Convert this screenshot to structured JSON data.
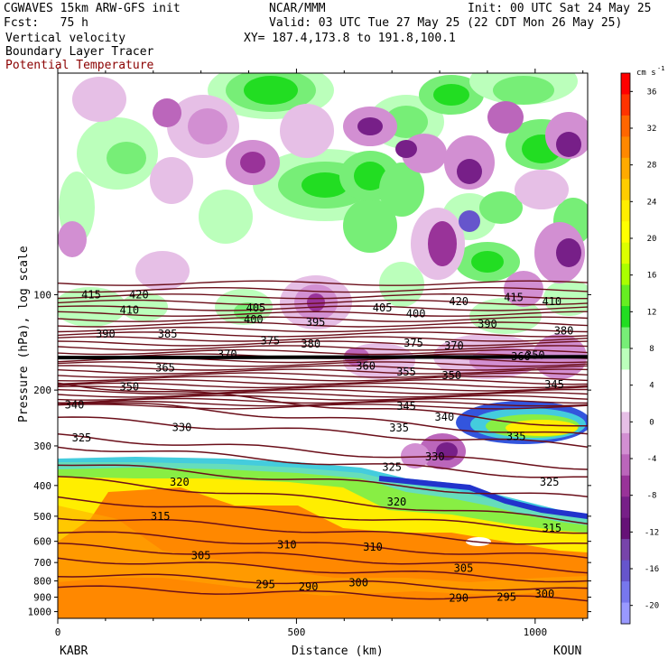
{
  "header": {
    "model_line": "CGWAVES 15km ARW-GFS init",
    "forecast_line": "Fcst:   75 h",
    "field_line": "Vertical velocity",
    "tracer_line": "Boundary Layer Tracer",
    "contour_line": "Potential Temperature",
    "org_line": "NCAR/MMM",
    "init_line": "Init: 00 UTC Sat 24 May 25",
    "valid_line": "Valid: 03 UTC Tue 27 May 25 (22 CDT Mon 26 May 25)",
    "xy_line": "XY= 187.4,173.8 to 191.8,100.1"
  },
  "colors": {
    "contour": "#6b0f1a",
    "contour_label_text": "#000000",
    "colorbar": [
      "#ff0000",
      "#ff3300",
      "#ff6600",
      "#ff8800",
      "#ffaa00",
      "#ffcc00",
      "#ffee00",
      "#ffff00",
      "#ddff00",
      "#aaff00",
      "#66ee22",
      "#22dd22",
      "#77ee77",
      "#bbffbb",
      "#ffffff",
      "#ffffff",
      "#e6bfe6",
      "#d28fd2",
      "#bb66bb",
      "#993399",
      "#771f88",
      "#661177",
      "#7744aa",
      "#6655cc",
      "#7777ee",
      "#9999ff"
    ]
  },
  "chart_data": {
    "type": "heatmap",
    "title": "Vertical velocity",
    "xlabel": "Distance (km)",
    "ylabel": "Pressure (hPa), log scale",
    "xlim": [
      0,
      1110
    ],
    "ylim": [
      1050,
      20
    ],
    "y_scale": "log",
    "x_ticks": [
      0,
      500,
      1000
    ],
    "y_ticks": [
      100,
      200,
      300,
      400,
      500,
      600,
      700,
      800,
      900,
      1000
    ],
    "x_endpoints": {
      "left": "KABR",
      "right": "KOUN"
    },
    "colorbar": {
      "unit": "cm s",
      "unit_exponent": "-1",
      "ticks": [
        36,
        32,
        28,
        24,
        20,
        16,
        12,
        8,
        4,
        0,
        -4,
        -8,
        -12,
        -16,
        -20
      ]
    },
    "theta_labels": [
      {
        "x": 70,
        "p": 100,
        "v": "415"
      },
      {
        "x": 170,
        "p": 100,
        "v": "420"
      },
      {
        "x": 150,
        "p": 112,
        "v": "410"
      },
      {
        "x": 415,
        "p": 110,
        "v": "405"
      },
      {
        "x": 840,
        "p": 105,
        "v": "420"
      },
      {
        "x": 680,
        "p": 110,
        "v": "405"
      },
      {
        "x": 955,
        "p": 102,
        "v": "415"
      },
      {
        "x": 1035,
        "p": 105,
        "v": "410"
      },
      {
        "x": 410,
        "p": 120,
        "v": "400"
      },
      {
        "x": 540,
        "p": 122,
        "v": "395"
      },
      {
        "x": 750,
        "p": 115,
        "v": "400"
      },
      {
        "x": 900,
        "p": 124,
        "v": "390"
      },
      {
        "x": 100,
        "p": 133,
        "v": "390"
      },
      {
        "x": 230,
        "p": 133,
        "v": "385"
      },
      {
        "x": 1060,
        "p": 130,
        "v": "380"
      },
      {
        "x": 445,
        "p": 140,
        "v": "375"
      },
      {
        "x": 530,
        "p": 143,
        "v": "380"
      },
      {
        "x": 745,
        "p": 142,
        "v": "375"
      },
      {
        "x": 830,
        "p": 145,
        "v": "370"
      },
      {
        "x": 355,
        "p": 154,
        "v": "370"
      },
      {
        "x": 970,
        "p": 157,
        "v": "360"
      },
      {
        "x": 1000,
        "p": 155,
        "v": "350"
      },
      {
        "x": 225,
        "p": 170,
        "v": "365"
      },
      {
        "x": 645,
        "p": 168,
        "v": "360"
      },
      {
        "x": 730,
        "p": 175,
        "v": "355"
      },
      {
        "x": 825,
        "p": 180,
        "v": "350"
      },
      {
        "x": 1040,
        "p": 192,
        "v": "345"
      },
      {
        "x": 150,
        "p": 195,
        "v": "350"
      },
      {
        "x": 35,
        "p": 223,
        "v": "340"
      },
      {
        "x": 730,
        "p": 225,
        "v": "345"
      },
      {
        "x": 810,
        "p": 243,
        "v": "340"
      },
      {
        "x": 715,
        "p": 263,
        "v": "335"
      },
      {
        "x": 960,
        "p": 280,
        "v": "335"
      },
      {
        "x": 260,
        "p": 262,
        "v": "330"
      },
      {
        "x": 50,
        "p": 283,
        "v": "325"
      },
      {
        "x": 790,
        "p": 325,
        "v": "330"
      },
      {
        "x": 700,
        "p": 350,
        "v": "325"
      },
      {
        "x": 255,
        "p": 390,
        "v": "320"
      },
      {
        "x": 710,
        "p": 450,
        "v": "320"
      },
      {
        "x": 1030,
        "p": 390,
        "v": "325"
      },
      {
        "x": 215,
        "p": 500,
        "v": "315"
      },
      {
        "x": 1035,
        "p": 545,
        "v": "315"
      },
      {
        "x": 480,
        "p": 615,
        "v": "310"
      },
      {
        "x": 660,
        "p": 625,
        "v": "310"
      },
      {
        "x": 300,
        "p": 665,
        "v": "305"
      },
      {
        "x": 850,
        "p": 730,
        "v": "305"
      },
      {
        "x": 435,
        "p": 822,
        "v": "295"
      },
      {
        "x": 525,
        "p": 835,
        "v": "290"
      },
      {
        "x": 630,
        "p": 810,
        "v": "300"
      },
      {
        "x": 840,
        "p": 905,
        "v": "290"
      },
      {
        "x": 940,
        "p": 900,
        "v": "295"
      },
      {
        "x": 1020,
        "p": 880,
        "v": "300"
      }
    ]
  }
}
